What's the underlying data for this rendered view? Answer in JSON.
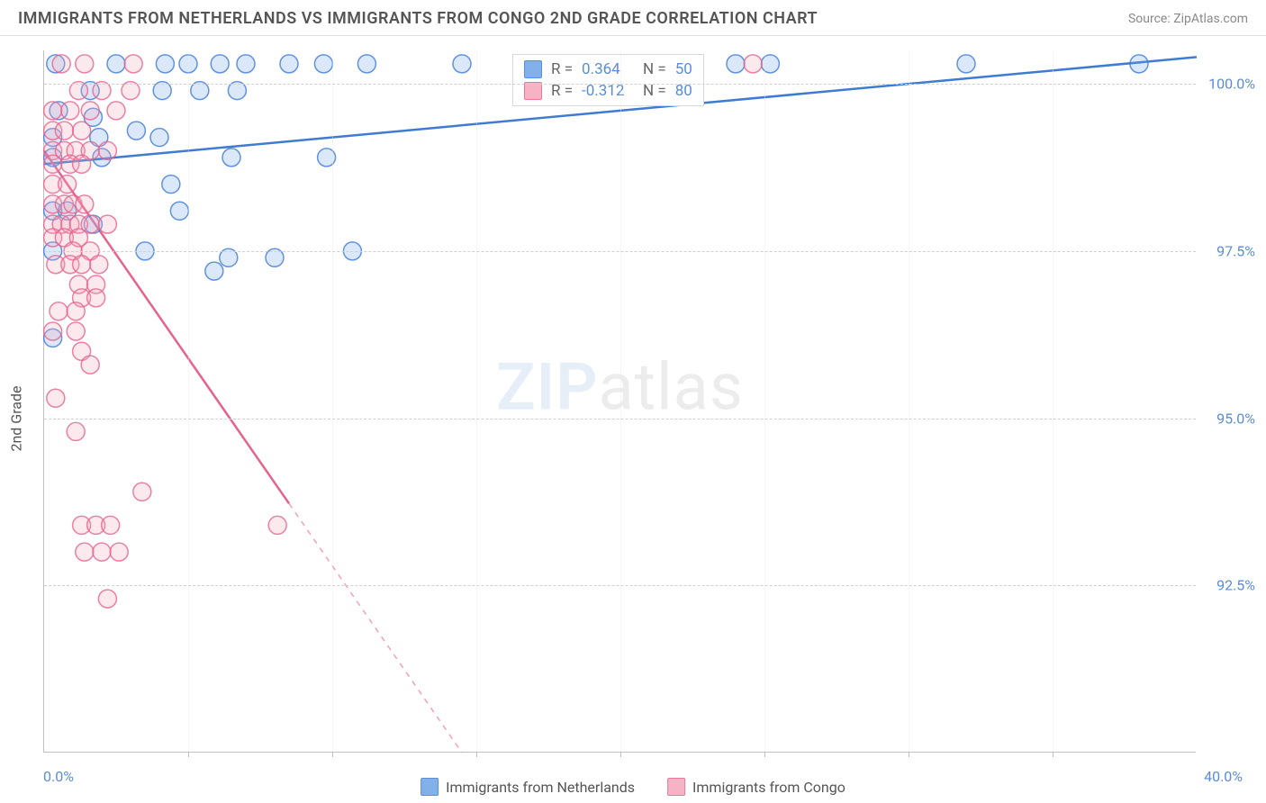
{
  "header": {
    "title": "IMMIGRANTS FROM NETHERLANDS VS IMMIGRANTS FROM CONGO 2ND GRADE CORRELATION CHART",
    "source": "Source: ZipAtlas.com"
  },
  "chart": {
    "type": "scatter",
    "background_color": "#ffffff",
    "grid_color": "#d0d0d0",
    "axis_color": "#c0c0c0",
    "text_color": "#555555",
    "tick_label_color": "#5a8dd6",
    "y_axis_title": "2nd Grade",
    "label_fontsize": 16,
    "title_fontsize": 18,
    "xlim": [
      0,
      40
    ],
    "ylim": [
      90,
      100.5
    ],
    "y_ticks": [
      92.5,
      95.0,
      97.5,
      100.0
    ],
    "y_tick_labels": [
      "92.5%",
      "95.0%",
      "97.5%",
      "100.0%"
    ],
    "x_tick_positions": [
      0,
      5,
      10,
      15,
      20,
      25,
      30,
      35,
      40
    ],
    "x_min_label": "0.0%",
    "x_max_label": "40.0%",
    "marker_radius": 10,
    "marker_fill_opacity": 0.25,
    "marker_stroke_opacity": 0.8,
    "marker_stroke_width": 1.5,
    "trend_line_width": 2.5,
    "series": [
      {
        "id": "netherlands",
        "label": "Immigrants from Netherlands",
        "color": "#6da3e6",
        "stroke": "#3f7bd1",
        "r_value": "0.364",
        "n_value": "50",
        "trend": {
          "x1": 0,
          "y1": 98.8,
          "x2": 40,
          "y2": 100.4,
          "solid_until_x": 40
        },
        "points": [
          [
            0.4,
            100.3
          ],
          [
            2.5,
            100.3
          ],
          [
            4.2,
            100.3
          ],
          [
            5.0,
            100.3
          ],
          [
            6.1,
            100.3
          ],
          [
            7.0,
            100.3
          ],
          [
            8.5,
            100.3
          ],
          [
            9.7,
            100.3
          ],
          [
            11.2,
            100.3
          ],
          [
            14.5,
            100.3
          ],
          [
            18.0,
            100.3
          ],
          [
            19.5,
            100.3
          ],
          [
            21.5,
            100.3
          ],
          [
            24.0,
            100.3
          ],
          [
            25.2,
            100.3
          ],
          [
            32.0,
            100.3
          ],
          [
            38.0,
            100.3
          ],
          [
            1.6,
            99.9
          ],
          [
            4.1,
            99.9
          ],
          [
            5.4,
            99.9
          ],
          [
            6.7,
            99.9
          ],
          [
            19.0,
            99.9
          ],
          [
            0.5,
            99.6
          ],
          [
            1.7,
            99.5
          ],
          [
            0.3,
            99.2
          ],
          [
            1.9,
            99.2
          ],
          [
            3.2,
            99.3
          ],
          [
            4.0,
            99.2
          ],
          [
            0.3,
            98.9
          ],
          [
            2.0,
            98.9
          ],
          [
            6.5,
            98.9
          ],
          [
            9.8,
            98.9
          ],
          [
            4.4,
            98.5
          ],
          [
            0.3,
            98.1
          ],
          [
            0.8,
            98.1
          ],
          [
            4.7,
            98.1
          ],
          [
            1.7,
            97.9
          ],
          [
            0.3,
            97.5
          ],
          [
            3.5,
            97.5
          ],
          [
            6.4,
            97.4
          ],
          [
            8.0,
            97.4
          ],
          [
            10.7,
            97.5
          ],
          [
            5.9,
            97.2
          ],
          [
            0.3,
            96.2
          ]
        ]
      },
      {
        "id": "congo",
        "label": "Immigrants from Congo",
        "color": "#f4a6bb",
        "stroke": "#e6638d",
        "r_value": "-0.312",
        "n_value": "80",
        "trend": {
          "x1": 0,
          "y1": 99.0,
          "x2": 14.5,
          "y2": 90.0,
          "solid_until_x": 8.5
        },
        "points": [
          [
            0.6,
            100.3
          ],
          [
            1.4,
            100.3
          ],
          [
            3.1,
            100.3
          ],
          [
            24.6,
            100.3
          ],
          [
            1.2,
            99.9
          ],
          [
            2.0,
            99.9
          ],
          [
            3.0,
            99.9
          ],
          [
            0.3,
            99.6
          ],
          [
            0.9,
            99.6
          ],
          [
            1.6,
            99.6
          ],
          [
            2.5,
            99.6
          ],
          [
            0.3,
            99.3
          ],
          [
            0.7,
            99.3
          ],
          [
            1.3,
            99.3
          ],
          [
            0.3,
            99.0
          ],
          [
            0.7,
            99.0
          ],
          [
            1.1,
            99.0
          ],
          [
            1.6,
            99.0
          ],
          [
            2.2,
            99.0
          ],
          [
            0.3,
            98.8
          ],
          [
            0.9,
            98.8
          ],
          [
            1.3,
            98.8
          ],
          [
            0.3,
            98.5
          ],
          [
            0.8,
            98.5
          ],
          [
            0.3,
            98.2
          ],
          [
            0.7,
            98.2
          ],
          [
            1.0,
            98.2
          ],
          [
            1.4,
            98.2
          ],
          [
            0.3,
            97.9
          ],
          [
            0.6,
            97.9
          ],
          [
            0.9,
            97.9
          ],
          [
            1.2,
            97.9
          ],
          [
            1.6,
            97.9
          ],
          [
            2.2,
            97.9
          ],
          [
            0.3,
            97.7
          ],
          [
            0.7,
            97.7
          ],
          [
            1.2,
            97.7
          ],
          [
            1.0,
            97.5
          ],
          [
            1.6,
            97.5
          ],
          [
            0.4,
            97.3
          ],
          [
            0.9,
            97.3
          ],
          [
            1.3,
            97.3
          ],
          [
            1.9,
            97.3
          ],
          [
            1.2,
            97.0
          ],
          [
            1.8,
            97.0
          ],
          [
            1.3,
            96.8
          ],
          [
            1.8,
            96.8
          ],
          [
            0.5,
            96.6
          ],
          [
            1.1,
            96.6
          ],
          [
            0.3,
            96.3
          ],
          [
            1.1,
            96.3
          ],
          [
            1.3,
            96.0
          ],
          [
            1.6,
            95.8
          ],
          [
            0.4,
            95.3
          ],
          [
            1.1,
            94.8
          ],
          [
            3.4,
            93.9
          ],
          [
            1.3,
            93.4
          ],
          [
            1.8,
            93.4
          ],
          [
            2.3,
            93.4
          ],
          [
            8.1,
            93.4
          ],
          [
            1.4,
            93.0
          ],
          [
            2.0,
            93.0
          ],
          [
            2.6,
            93.0
          ],
          [
            2.2,
            92.3
          ]
        ]
      }
    ]
  },
  "legend_top": {
    "r_prefix": "R =",
    "n_prefix": "N ="
  },
  "watermark": {
    "part1": "ZIP",
    "part2": "atlas"
  }
}
